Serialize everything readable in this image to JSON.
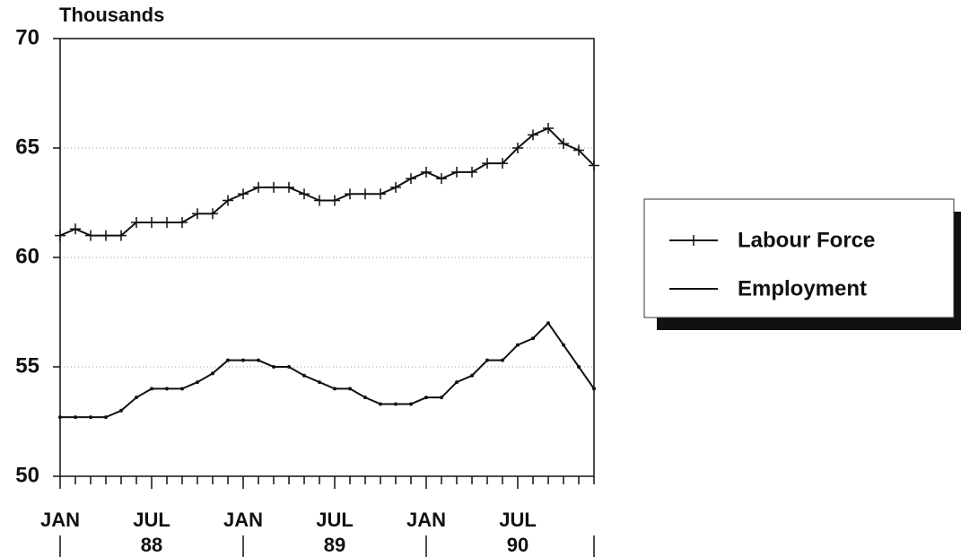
{
  "chart_data": {
    "type": "line",
    "y_label": "Thousands",
    "categories": [
      "JAN",
      null,
      null,
      null,
      null,
      null,
      "JUL",
      null,
      null,
      null,
      null,
      null,
      "JAN",
      null,
      null,
      null,
      null,
      null,
      "JUL",
      null,
      null,
      null,
      null,
      null,
      "JAN",
      null,
      null,
      null,
      null,
      null,
      "JUL",
      null,
      null,
      null,
      null,
      null
    ],
    "year_labels": [
      "88",
      "89",
      "90"
    ],
    "series": [
      {
        "name": "Labour Force",
        "color": "#111111",
        "marker": "plus",
        "values": [
          61.0,
          61.3,
          61.0,
          61.0,
          61.0,
          61.6,
          61.6,
          61.6,
          61.6,
          62.0,
          62.0,
          62.6,
          62.9,
          63.2,
          63.2,
          63.2,
          62.9,
          62.6,
          62.6,
          62.9,
          62.9,
          62.9,
          63.2,
          63.6,
          63.9,
          63.6,
          63.9,
          63.9,
          64.3,
          64.3,
          65.0,
          65.6,
          65.9,
          65.2,
          64.9,
          64.2
        ]
      },
      {
        "name": "Employment",
        "color": "#111111",
        "marker": "dot",
        "values": [
          52.7,
          52.7,
          52.7,
          52.7,
          53.0,
          53.6,
          54.0,
          54.0,
          54.0,
          54.3,
          54.7,
          55.3,
          55.3,
          55.3,
          55.0,
          55.0,
          54.6,
          54.3,
          54.0,
          54.0,
          53.6,
          53.3,
          53.3,
          53.3,
          53.6,
          53.6,
          54.3,
          54.6,
          55.3,
          55.3,
          56.0,
          56.3,
          57.0,
          56.0,
          55.0,
          54.0
        ]
      }
    ],
    "ylim": [
      50,
      70
    ],
    "yticks": [
      50,
      55,
      60,
      65,
      70
    ],
    "grid": true,
    "legend": "right"
  }
}
